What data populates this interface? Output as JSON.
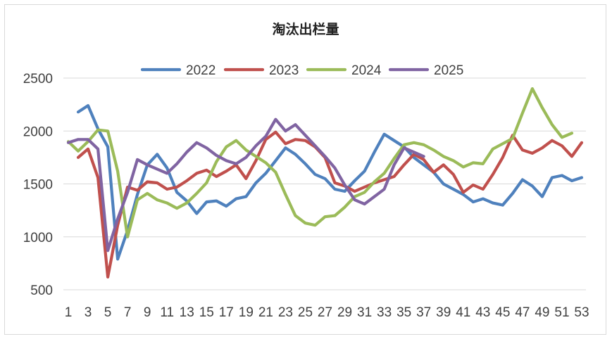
{
  "chart_data": {
    "type": "line",
    "title": "淘汰出栏量",
    "xlabel": "",
    "ylabel": "",
    "x": [
      1,
      2,
      3,
      4,
      5,
      6,
      7,
      8,
      9,
      10,
      11,
      12,
      13,
      14,
      15,
      16,
      17,
      18,
      19,
      20,
      21,
      22,
      23,
      24,
      25,
      26,
      27,
      28,
      29,
      30,
      31,
      32,
      33,
      34,
      35,
      36,
      37,
      38,
      39,
      40,
      41,
      42,
      43,
      44,
      45,
      46,
      47,
      48,
      49,
      50,
      51,
      52,
      53
    ],
    "x_tick_labels": [
      "1",
      "3",
      "5",
      "7",
      "9",
      "11",
      "13",
      "15",
      "17",
      "19",
      "21",
      "23",
      "25",
      "27",
      "29",
      "31",
      "33",
      "35",
      "37",
      "39",
      "41",
      "43",
      "45",
      "47",
      "49",
      "51",
      "53"
    ],
    "ylim": [
      500,
      2500
    ],
    "y_ticks": [
      500,
      1000,
      1500,
      2000,
      2500
    ],
    "grid": "horizontal",
    "legend_position": "top",
    "series": [
      {
        "name": "2022",
        "color": "#4f81bd",
        "values": [
          null,
          2180,
          2240,
          2020,
          1850,
          790,
          1060,
          1400,
          1680,
          1780,
          1650,
          1420,
          1340,
          1220,
          1330,
          1340,
          1290,
          1360,
          1380,
          1510,
          1600,
          1720,
          1840,
          1780,
          1690,
          1590,
          1550,
          1450,
          1430,
          1530,
          1620,
          1800,
          1970,
          1910,
          1850,
          1750,
          1680,
          1610,
          1500,
          1450,
          1400,
          1330,
          1360,
          1320,
          1300,
          1410,
          1540,
          1480,
          1380,
          1560,
          1580,
          1530,
          1560
        ]
      },
      {
        "name": "2023",
        "color": "#c0504d",
        "values": [
          null,
          1750,
          1830,
          1560,
          620,
          1110,
          1470,
          1440,
          1520,
          1510,
          1450,
          1470,
          1530,
          1600,
          1630,
          1570,
          1620,
          1680,
          1550,
          1720,
          1920,
          1990,
          1880,
          1920,
          1910,
          1850,
          1750,
          1510,
          1480,
          1430,
          1470,
          1510,
          1540,
          1570,
          1680,
          1780,
          1730,
          1610,
          1680,
          1590,
          1420,
          1490,
          1450,
          1590,
          1750,
          1960,
          1820,
          1790,
          1840,
          1910,
          1860,
          1760,
          1890
        ]
      },
      {
        "name": "2024",
        "color": "#9bbb59",
        "values": [
          1900,
          1810,
          1900,
          2010,
          2000,
          1620,
          1000,
          1350,
          1410,
          1350,
          1320,
          1270,
          1320,
          1410,
          1510,
          1710,
          1850,
          1910,
          1820,
          1760,
          1700,
          1610,
          1400,
          1200,
          1130,
          1110,
          1190,
          1200,
          1280,
          1380,
          1420,
          1520,
          1600,
          1740,
          1870,
          1890,
          1870,
          1820,
          1760,
          1720,
          1660,
          1700,
          1690,
          1830,
          1880,
          1930,
          2170,
          2400,
          2220,
          2060,
          1940,
          1980,
          null
        ]
      },
      {
        "name": "2025",
        "color": "#8064a2",
        "values": [
          1890,
          1920,
          1920,
          1830,
          870,
          1170,
          1420,
          1730,
          1680,
          1640,
          1600,
          1690,
          1800,
          1890,
          1840,
          1770,
          1720,
          1690,
          1750,
          1860,
          1950,
          2110,
          2000,
          2060,
          1960,
          1860,
          1760,
          1650,
          1490,
          1350,
          1310,
          1380,
          1450,
          1680,
          1840,
          1800,
          1760,
          null,
          null,
          null,
          null,
          null,
          null,
          null,
          null,
          null,
          null,
          null,
          null,
          null,
          null,
          null,
          null
        ]
      }
    ]
  }
}
